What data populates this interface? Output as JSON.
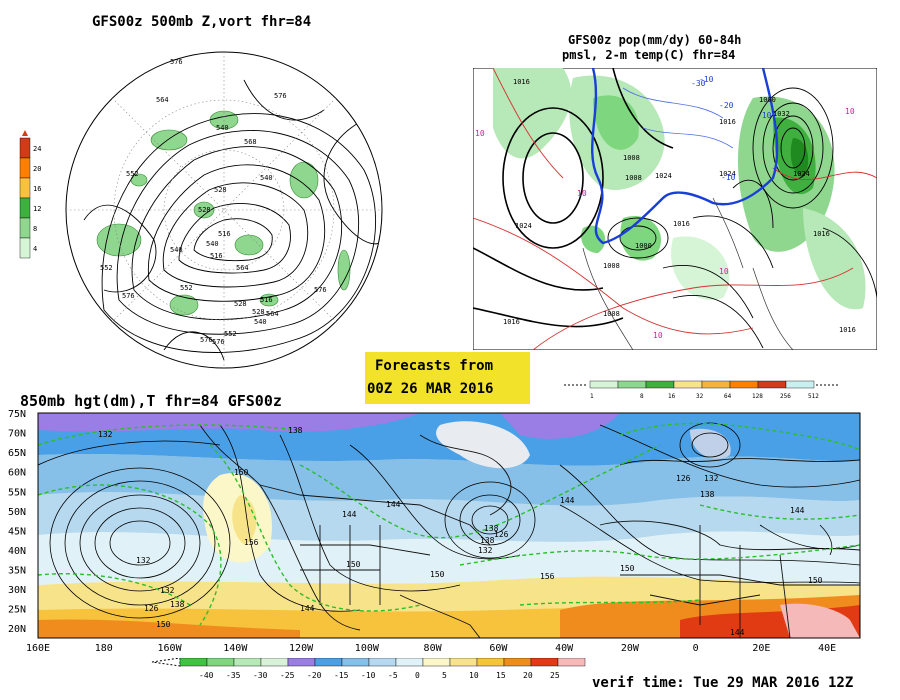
{
  "colors": {
    "yellow_banner": "#f2e32a",
    "green_precip": "#5ab45a",
    "blue_freezing": "#1a3fd8",
    "red_isotherm": "#d83030",
    "magenta_label": "#d0209a",
    "dash_green": "#2bbf2b"
  },
  "panel_500mb": {
    "title": "GFS00z  500mb Z,vort   fhr=84",
    "legend": {
      "ticks": [
        "24",
        "20",
        "16",
        "12",
        "8",
        "4"
      ],
      "colors": [
        "#d23a1a",
        "#ff7f00",
        "#f7c23c",
        "#3fb03f",
        "#8fd68f",
        "#d6f5d6"
      ]
    },
    "contour_labels": [
      "576",
      "564",
      "540",
      "552",
      "528",
      "540",
      "516",
      "568",
      "540",
      "576",
      "528",
      "552",
      "576",
      "564",
      "516",
      "576",
      "552",
      "516",
      "528",
      "540",
      "552",
      "564",
      "576",
      "540",
      "528",
      "576"
    ]
  },
  "panel_precip": {
    "title_line1": "GFS00z pop(mm/dy) 60-84h",
    "title_line2": "pmsl, 2-m temp(C)  fhr=84",
    "pressure_labels": [
      "1016",
      "1008",
      "1024",
      "1016",
      "1024",
      "1000",
      "1008",
      "1016",
      "1024",
      "1032",
      "1016",
      "1000",
      "1008",
      "1016",
      "1016",
      "1024",
      "1008"
    ],
    "temp_labels": [
      "10",
      "10",
      "-10",
      "-20",
      "-30",
      "-10",
      "-10",
      "10",
      "10",
      "10"
    ],
    "legend": {
      "ticks": [
        "1",
        "8",
        "16",
        "32",
        "64",
        "128",
        "256",
        "512"
      ],
      "colors": [
        "#d6f5d6",
        "#8fd68f",
        "#3fb03f",
        "#f7e48a",
        "#f7b43c",
        "#ff7f00",
        "#d23a1a",
        "#c8f0f0"
      ]
    }
  },
  "forecast_banner": {
    "line1": "Forecasts from",
    "line2": "00Z 26 MAR 2016"
  },
  "panel_850mb": {
    "title": "850mb hgt(dm),T  fhr=84 GFS00z",
    "lat_labels": [
      "75N",
      "70N",
      "65N",
      "60N",
      "55N",
      "50N",
      "45N",
      "40N",
      "35N",
      "30N",
      "25N",
      "20N"
    ],
    "lon_labels": [
      "160E",
      "180",
      "160W",
      "140W",
      "120W",
      "100W",
      "80W",
      "60W",
      "40W",
      "20W",
      "0",
      "20E",
      "40E"
    ],
    "height_labels": [
      "132",
      "138",
      "150",
      "144",
      "144",
      "126",
      "138",
      "132",
      "150",
      "156",
      "144",
      "138",
      "150",
      "144",
      "132",
      "126",
      "132",
      "138",
      "150",
      "156",
      "150",
      "150",
      "144",
      "138",
      "132",
      "126",
      "144"
    ],
    "legend": {
      "ticks": [
        "-40",
        "-35",
        "-30",
        "-25",
        "-20",
        "-15",
        "-10",
        "-5",
        "0",
        "5",
        "10",
        "15",
        "20",
        "25"
      ],
      "colors": [
        "#3fc43f",
        "#7ed67e",
        "#b7e8b7",
        "#d9f0d9",
        "#9b7de6",
        "#4aa0e6",
        "#86bfe8",
        "#b6d9f0",
        "#e0f2f7",
        "#fbf7c8",
        "#f7e48a",
        "#f7c23c",
        "#f08c1e",
        "#e03b12",
        "#f5b9b9"
      ]
    }
  },
  "verif_time": "verif time: Tue 29 MAR 2016 12Z"
}
